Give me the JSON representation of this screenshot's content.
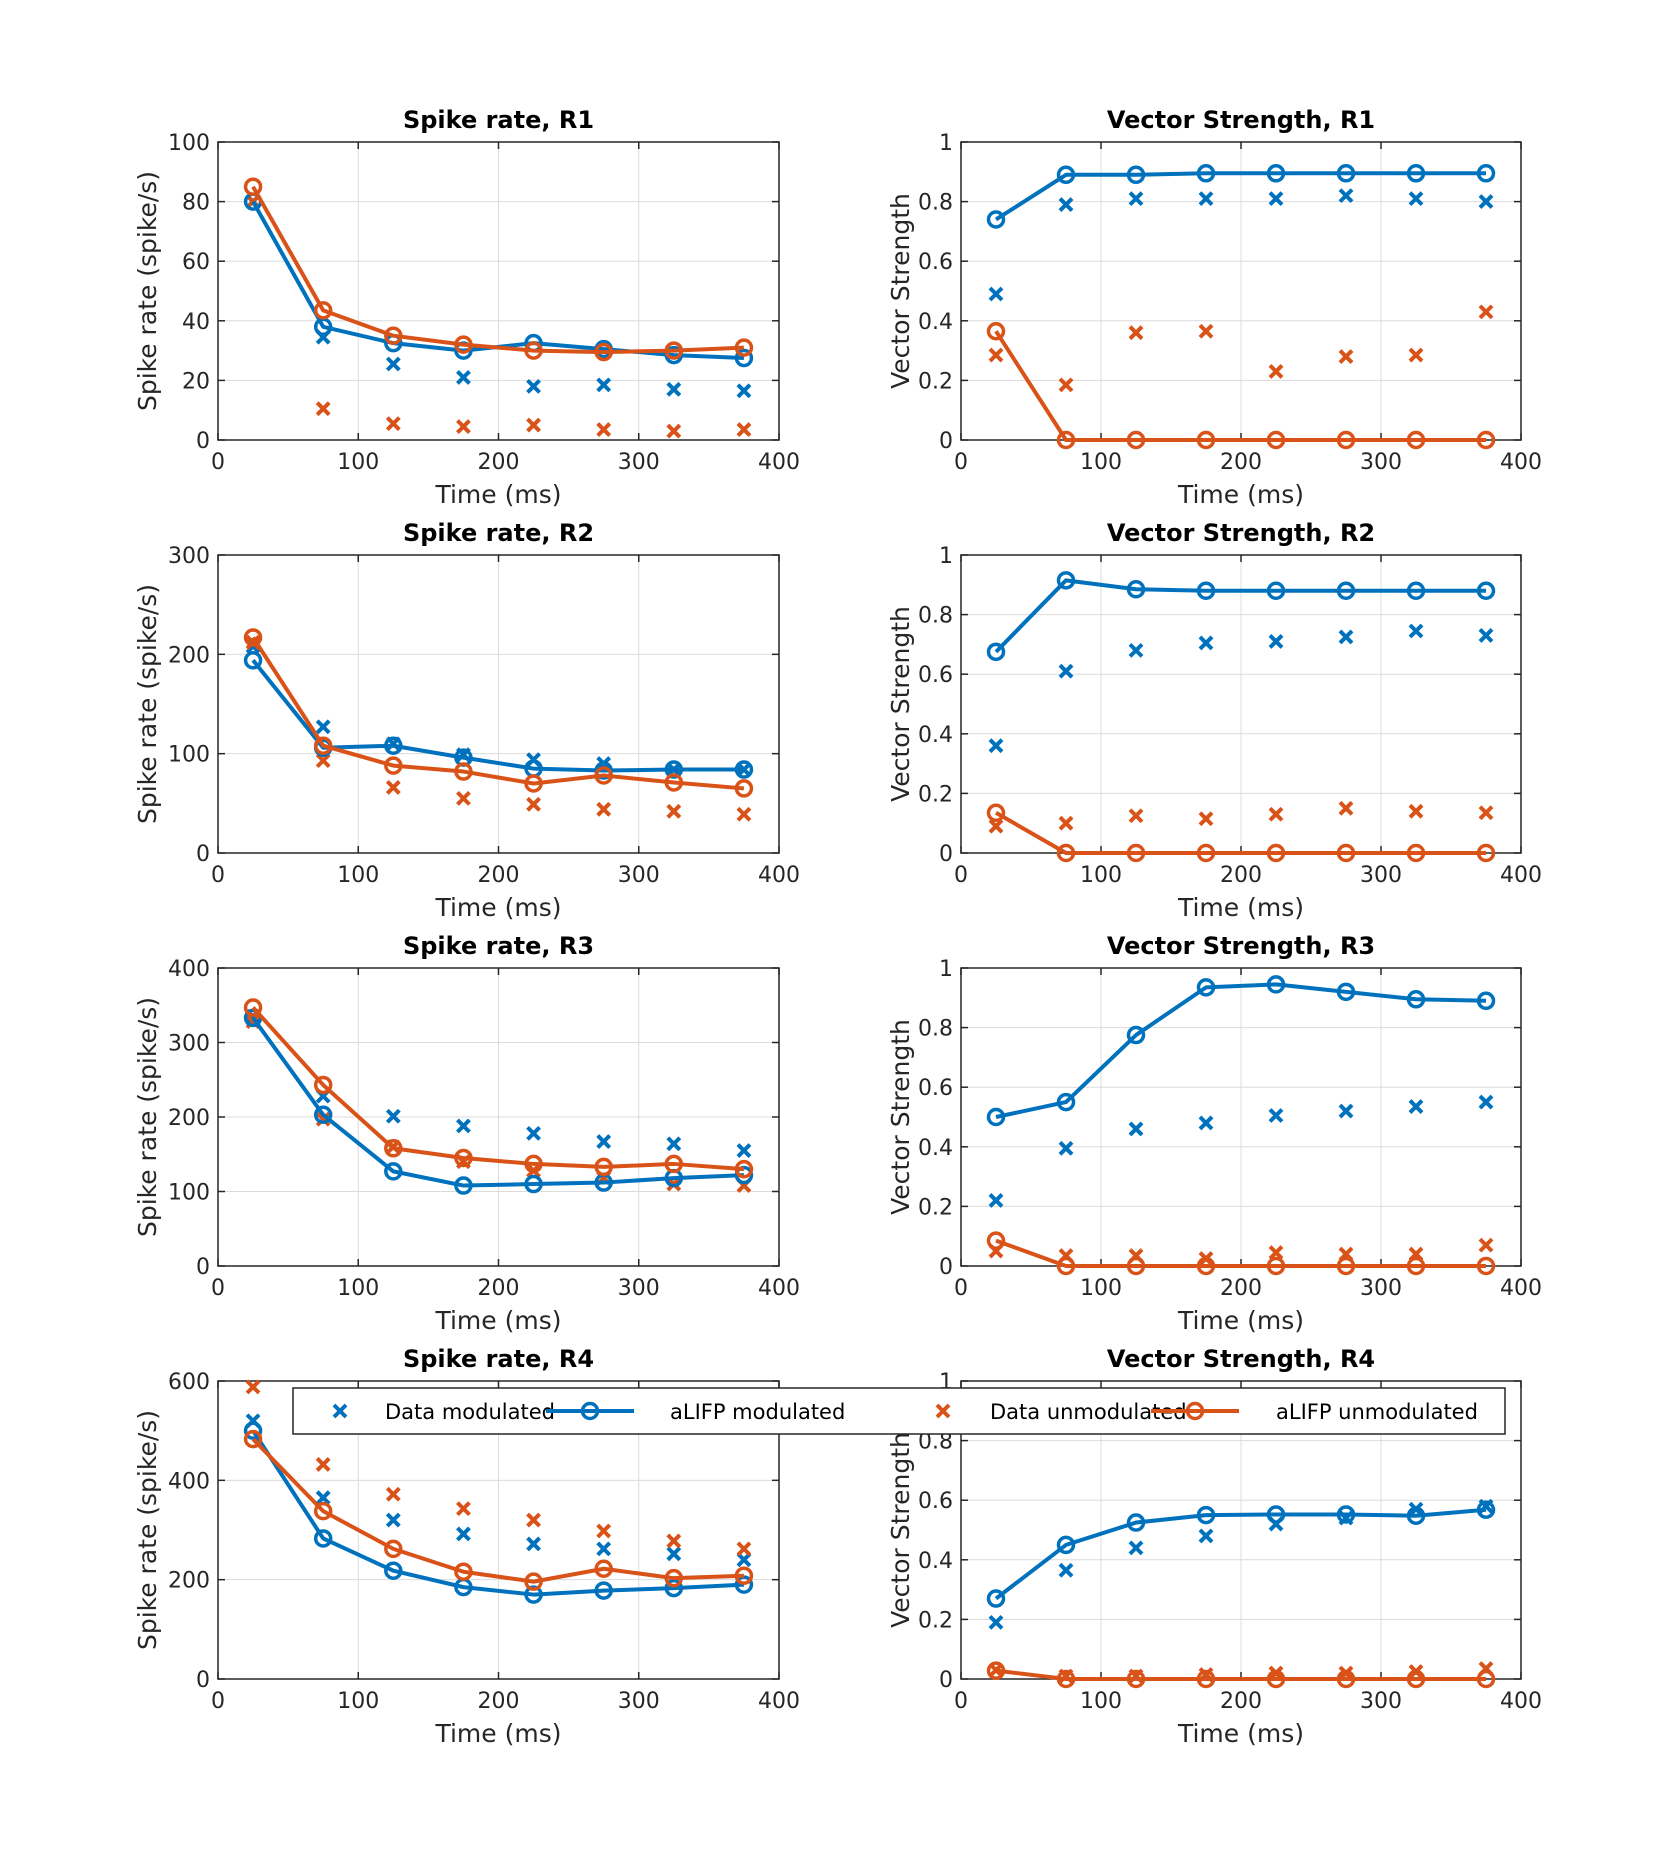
{
  "colors": {
    "modulated": "#0072BD",
    "unmodulated": "#D95319",
    "grid": "#DCDCDC",
    "axis": "#262626"
  },
  "legend": {
    "placement": "bottom row, spanning both columns",
    "entries": [
      {
        "label": "Data modulated",
        "marker": "x",
        "line": false,
        "series_key": "data_mod"
      },
      {
        "label": "aLIFP modulated",
        "marker": "o",
        "line": true,
        "series_key": "alifp_mod"
      },
      {
        "label": "Data unmodulated",
        "marker": "x",
        "line": false,
        "series_key": "data_unmod"
      },
      {
        "label": "aLIFP unmodulated",
        "marker": "o",
        "line": true,
        "series_key": "alifp_unmod"
      }
    ]
  },
  "chart_data": [
    {
      "type": "line",
      "title": "Spike rate, R1",
      "xlabel": "Time (ms)",
      "ylabel": "Spike rate (spike/s)",
      "xlim": [
        0,
        400
      ],
      "ylim": [
        0,
        100
      ],
      "xticks": [
        0,
        100,
        200,
        300,
        400
      ],
      "yticks": [
        0,
        20,
        40,
        60,
        80,
        100
      ],
      "ytick_labels": [
        "0",
        "20",
        "40",
        "60",
        "80",
        "100"
      ],
      "grid": true,
      "x": [
        25,
        75,
        125,
        175,
        225,
        275,
        325,
        375
      ],
      "series": [
        {
          "name": "Data modulated",
          "key": "data_mod",
          "values": [
            80,
            34.5,
            25.5,
            21,
            18,
            18.5,
            17,
            16.5
          ]
        },
        {
          "name": "aLIFP modulated",
          "key": "alifp_mod",
          "values": [
            80,
            38,
            32.5,
            30,
            32.5,
            30.5,
            28.5,
            27.5
          ]
        },
        {
          "name": "Data unmodulated",
          "key": "data_unmod",
          "values": [
            80,
            10.5,
            5.5,
            4.5,
            5,
            3.5,
            3,
            3.5
          ]
        },
        {
          "name": "aLIFP unmodulated",
          "key": "alifp_unmod",
          "values": [
            85,
            43.5,
            35,
            32,
            30,
            29.5,
            30,
            31
          ]
        }
      ]
    },
    {
      "type": "line",
      "title": "Vector Strength, R1",
      "xlabel": "Time (ms)",
      "ylabel": "Vector Strength",
      "xlim": [
        0,
        400
      ],
      "ylim": [
        0,
        1
      ],
      "xticks": [
        0,
        100,
        200,
        300,
        400
      ],
      "yticks": [
        0,
        0.2,
        0.4,
        0.6,
        0.8,
        1
      ],
      "ytick_labels": [
        "0",
        "0.2",
        "0.4",
        "0.6",
        "0.8",
        "1"
      ],
      "grid": true,
      "x": [
        25,
        75,
        125,
        175,
        225,
        275,
        325,
        375
      ],
      "series": [
        {
          "name": "Data modulated",
          "key": "data_mod",
          "values": [
            0.49,
            0.79,
            0.81,
            0.81,
            0.81,
            0.82,
            0.81,
            0.8
          ]
        },
        {
          "name": "aLIFP modulated",
          "key": "alifp_mod",
          "values": [
            0.74,
            0.89,
            0.89,
            0.895,
            0.895,
            0.895,
            0.895,
            0.895
          ]
        },
        {
          "name": "Data unmodulated",
          "key": "data_unmod",
          "values": [
            0.285,
            0.185,
            0.36,
            0.365,
            0.23,
            0.28,
            0.285,
            0.43
          ]
        },
        {
          "name": "aLIFP unmodulated",
          "key": "alifp_unmod",
          "values": [
            0.365,
            0,
            0,
            0,
            0,
            0,
            0,
            0
          ]
        }
      ]
    },
    {
      "type": "line",
      "title": "Spike rate, R2",
      "xlabel": "Time (ms)",
      "ylabel": "Spike rate (spike/s)",
      "xlim": [
        0,
        400
      ],
      "ylim": [
        0,
        300
      ],
      "xticks": [
        0,
        100,
        200,
        300,
        400
      ],
      "yticks": [
        0,
        100,
        200,
        300
      ],
      "ytick_labels": [
        "0",
        "100",
        "200",
        "300"
      ],
      "grid": true,
      "x": [
        25,
        75,
        125,
        175,
        225,
        275,
        325,
        375
      ],
      "series": [
        {
          "name": "Data modulated",
          "key": "data_mod",
          "values": [
            208,
            127,
            110,
            99,
            94,
            90,
            84,
            84
          ]
        },
        {
          "name": "aLIFP modulated",
          "key": "alifp_mod",
          "values": [
            194,
            106,
            108,
            96,
            85,
            83,
            84,
            84
          ]
        },
        {
          "name": "Data unmodulated",
          "key": "data_unmod",
          "values": [
            212,
            93,
            66,
            55,
            49,
            44,
            42,
            39
          ]
        },
        {
          "name": "aLIFP unmodulated",
          "key": "alifp_unmod",
          "values": [
            217,
            108,
            88,
            82,
            70,
            78,
            71,
            65
          ]
        }
      ]
    },
    {
      "type": "line",
      "title": "Vector Strength, R2",
      "xlabel": "Time (ms)",
      "ylabel": "Vector Strength",
      "xlim": [
        0,
        400
      ],
      "ylim": [
        0,
        1
      ],
      "xticks": [
        0,
        100,
        200,
        300,
        400
      ],
      "yticks": [
        0,
        0.2,
        0.4,
        0.6,
        0.8,
        1
      ],
      "ytick_labels": [
        "0",
        "0.2",
        "0.4",
        "0.6",
        "0.8",
        "1"
      ],
      "grid": true,
      "x": [
        25,
        75,
        125,
        175,
        225,
        275,
        325,
        375
      ],
      "series": [
        {
          "name": "Data modulated",
          "key": "data_mod",
          "values": [
            0.36,
            0.61,
            0.68,
            0.705,
            0.71,
            0.725,
            0.745,
            0.73
          ]
        },
        {
          "name": "aLIFP modulated",
          "key": "alifp_mod",
          "values": [
            0.675,
            0.915,
            0.885,
            0.88,
            0.88,
            0.88,
            0.88,
            0.88
          ]
        },
        {
          "name": "Data unmodulated",
          "key": "data_unmod",
          "values": [
            0.09,
            0.1,
            0.125,
            0.115,
            0.13,
            0.15,
            0.14,
            0.135
          ]
        },
        {
          "name": "aLIFP unmodulated",
          "key": "alifp_unmod",
          "values": [
            0.135,
            0,
            0,
            0,
            0,
            0,
            0,
            0
          ]
        }
      ]
    },
    {
      "type": "line",
      "title": "Spike rate, R3",
      "xlabel": "Time (ms)",
      "ylabel": "Spike rate (spike/s)",
      "xlim": [
        0,
        400
      ],
      "ylim": [
        0,
        400
      ],
      "xticks": [
        0,
        100,
        200,
        300,
        400
      ],
      "yticks": [
        0,
        100,
        200,
        300,
        400
      ],
      "ytick_labels": [
        "0",
        "100",
        "200",
        "300",
        "400"
      ],
      "grid": true,
      "x": [
        25,
        75,
        125,
        175,
        225,
        275,
        325,
        375
      ],
      "series": [
        {
          "name": "Data modulated",
          "key": "data_mod",
          "values": [
            335,
            228,
            201,
            188,
            178,
            167,
            164,
            155
          ]
        },
        {
          "name": "aLIFP modulated",
          "key": "alifp_mod",
          "values": [
            333,
            203,
            127,
            108,
            110,
            112,
            118,
            122
          ]
        },
        {
          "name": "Data unmodulated",
          "key": "data_unmod",
          "values": [
            328,
            197,
            160,
            140,
            128,
            118,
            110,
            108
          ]
        },
        {
          "name": "aLIFP unmodulated",
          "key": "alifp_unmod",
          "values": [
            347,
            243,
            158,
            145,
            137,
            133,
            137,
            130
          ]
        }
      ]
    },
    {
      "type": "line",
      "title": "Vector Strength, R3",
      "xlabel": "Time (ms)",
      "ylabel": "Vector Strength",
      "xlim": [
        0,
        400
      ],
      "ylim": [
        0,
        1
      ],
      "xticks": [
        0,
        100,
        200,
        300,
        400
      ],
      "yticks": [
        0,
        0.2,
        0.4,
        0.6,
        0.8,
        1
      ],
      "ytick_labels": [
        "0",
        "0.2",
        "0.4",
        "0.6",
        "0.8",
        "1"
      ],
      "grid": true,
      "x": [
        25,
        75,
        125,
        175,
        225,
        275,
        325,
        375
      ],
      "series": [
        {
          "name": "Data modulated",
          "key": "data_mod",
          "values": [
            0.22,
            0.395,
            0.46,
            0.48,
            0.505,
            0.52,
            0.535,
            0.55
          ]
        },
        {
          "name": "aLIFP modulated",
          "key": "alifp_mod",
          "values": [
            0.5,
            0.55,
            0.775,
            0.935,
            0.945,
            0.92,
            0.895,
            0.89
          ]
        },
        {
          "name": "Data unmodulated",
          "key": "data_unmod",
          "values": [
            0.05,
            0.035,
            0.035,
            0.025,
            0.045,
            0.04,
            0.04,
            0.07
          ]
        },
        {
          "name": "aLIFP unmodulated",
          "key": "alifp_unmod",
          "values": [
            0.085,
            0,
            0,
            0,
            0,
            0,
            0,
            0
          ]
        }
      ]
    },
    {
      "type": "line",
      "title": "Spike rate, R4",
      "xlabel": "Time (ms)",
      "ylabel": "Spike rate (spike/s)",
      "xlim": [
        0,
        400
      ],
      "ylim": [
        0,
        600
      ],
      "xticks": [
        0,
        100,
        200,
        300,
        400
      ],
      "yticks": [
        0,
        200,
        400,
        600
      ],
      "ytick_labels": [
        "0",
        "200",
        "400",
        "600"
      ],
      "grid": true,
      "x": [
        25,
        75,
        125,
        175,
        225,
        275,
        325,
        375
      ],
      "series": [
        {
          "name": "Data modulated",
          "key": "data_mod",
          "values": [
            520,
            365,
            320,
            292,
            272,
            262,
            252,
            240
          ]
        },
        {
          "name": "aLIFP modulated",
          "key": "alifp_mod",
          "values": [
            500,
            283,
            218,
            185,
            170,
            178,
            183,
            190
          ]
        },
        {
          "name": "Data unmodulated",
          "key": "data_unmod",
          "values": [
            588,
            432,
            372,
            343,
            320,
            298,
            278,
            262
          ]
        },
        {
          "name": "aLIFP unmodulated",
          "key": "alifp_unmod",
          "values": [
            483,
            338,
            262,
            216,
            196,
            222,
            203,
            208
          ]
        }
      ]
    },
    {
      "type": "line",
      "title": "Vector Strength, R4",
      "xlabel": "Time (ms)",
      "ylabel": "Vector Strength",
      "xlim": [
        0,
        400
      ],
      "ylim": [
        0,
        1
      ],
      "xticks": [
        0,
        100,
        200,
        300,
        400
      ],
      "yticks": [
        0,
        0.2,
        0.4,
        0.6,
        0.8,
        1
      ],
      "ytick_labels": [
        "0",
        "0.2",
        "0.4",
        "0.6",
        "0.8",
        "1"
      ],
      "grid": true,
      "x": [
        25,
        75,
        125,
        175,
        225,
        275,
        325,
        375
      ],
      "series": [
        {
          "name": "Data modulated",
          "key": "data_mod",
          "values": [
            0.19,
            0.365,
            0.44,
            0.48,
            0.52,
            0.54,
            0.57,
            0.58
          ]
        },
        {
          "name": "aLIFP modulated",
          "key": "alifp_mod",
          "values": [
            0.27,
            0.45,
            0.525,
            0.55,
            0.552,
            0.552,
            0.548,
            0.568
          ]
        },
        {
          "name": "Data unmodulated",
          "key": "data_unmod",
          "values": [
            0.03,
            0.01,
            0.01,
            0.015,
            0.02,
            0.02,
            0.025,
            0.035
          ]
        },
        {
          "name": "aLIFP unmodulated",
          "key": "alifp_unmod",
          "values": [
            0.028,
            0,
            0,
            0,
            0,
            0,
            0,
            0
          ]
        }
      ]
    }
  ]
}
